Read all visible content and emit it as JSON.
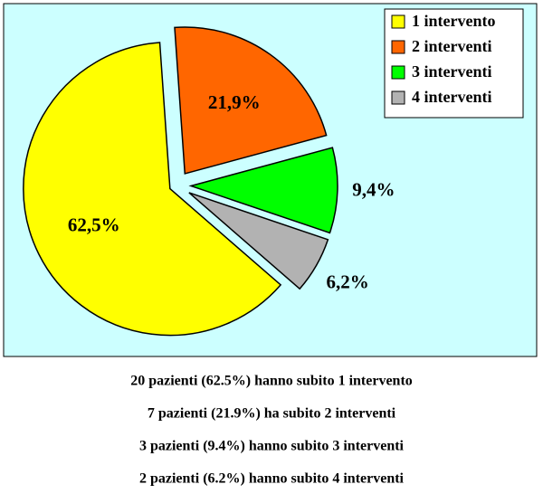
{
  "chart_data": {
    "type": "pie",
    "categories": [
      "1 intervento",
      "2 interventi",
      "3 interventi",
      "4 interventi"
    ],
    "values": [
      62.5,
      21.9,
      9.4,
      6.2
    ],
    "value_labels": [
      "62,5%",
      "21,9%",
      "9,4%",
      "6,2%"
    ],
    "colors": [
      "#ffff00",
      "#ff6600",
      "#00ff00",
      "#b2b2b2"
    ],
    "legend": "top-right"
  },
  "footer_lines": [
    "20 pazienti (62.5%) hanno subito 1 intervento",
    "7 pazienti (21.9%) ha subito 2 interventi",
    "3 pazienti (9.4%) hanno subito 3 interventi",
    "2 pazienti (6.2%) hanno subito 4 interventi"
  ]
}
